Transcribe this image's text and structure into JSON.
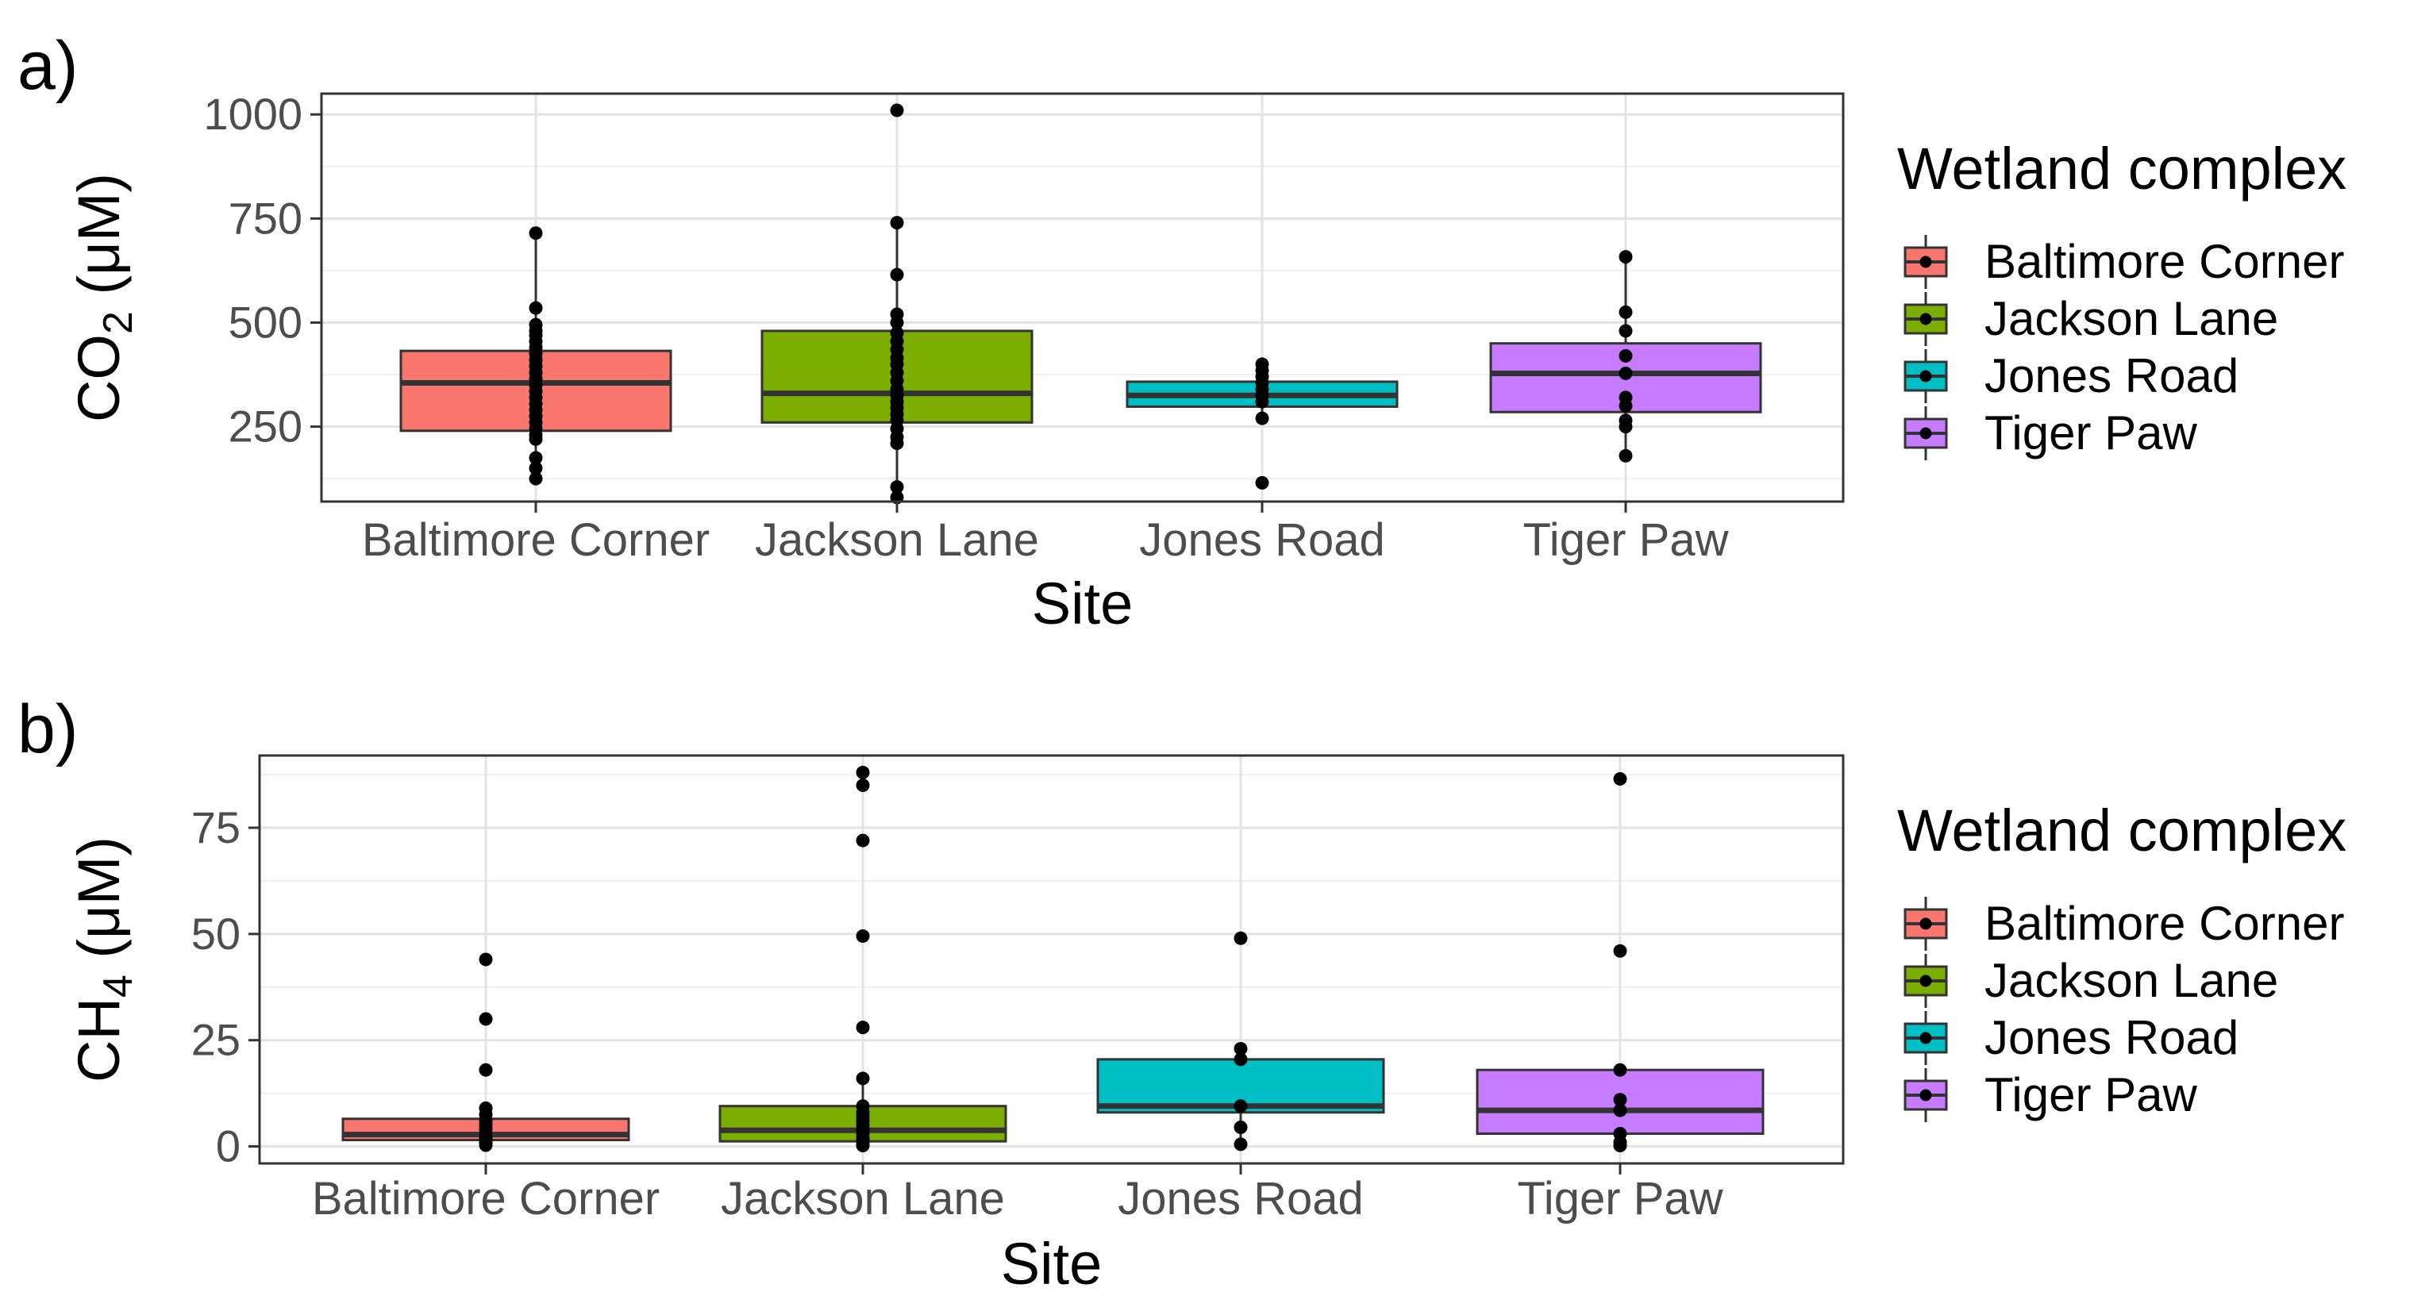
{
  "chart_data": [
    {
      "panel_label": "a)",
      "type": "box",
      "xlabel": "Site",
      "ylabel": {
        "main": "CO",
        "sub": "2",
        "unit": " (μM)"
      },
      "ylim": [
        70,
        1050
      ],
      "yticks": [
        250,
        500,
        750,
        1000
      ],
      "ytick_labels": [
        "250",
        "500",
        "750",
        "1000"
      ],
      "categories": [
        "Baltimore Corner",
        "Jackson Lane",
        "Jones Road",
        "Tiger Paw"
      ],
      "grid": true,
      "legend_position": "right",
      "boxes": [
        {
          "category": "Baltimore Corner",
          "q1": 240,
          "median": 355,
          "q3": 432,
          "whisker_low": 120,
          "whisker_high": 715,
          "points": [
            715,
            535,
            495,
            480,
            470,
            455,
            440,
            425,
            410,
            395,
            380,
            365,
            350,
            335,
            320,
            305,
            290,
            275,
            260,
            245,
            230,
            220,
            175,
            150,
            125
          ]
        },
        {
          "category": "Jackson Lane",
          "q1": 260,
          "median": 330,
          "q3": 480,
          "whisker_low": 80,
          "whisker_high": 740,
          "points": [
            1010,
            740,
            615,
            520,
            500,
            475,
            455,
            435,
            415,
            400,
            380,
            360,
            340,
            325,
            310,
            295,
            280,
            265,
            245,
            225,
            210,
            105,
            80
          ]
        },
        {
          "category": "Jones Road",
          "q1": 298,
          "median": 325,
          "q3": 358,
          "whisker_low": 270,
          "whisker_high": 400,
          "points": [
            400,
            385,
            370,
            355,
            340,
            325,
            310,
            270,
            115
          ]
        },
        {
          "category": "Tiger Paw",
          "q1": 285,
          "median": 378,
          "q3": 450,
          "whisker_low": 180,
          "whisker_high": 658,
          "points": [
            658,
            525,
            480,
            420,
            378,
            320,
            300,
            265,
            250,
            180
          ]
        }
      ]
    },
    {
      "panel_label": "b)",
      "type": "box",
      "xlabel": "Site",
      "ylabel": {
        "main": "CH",
        "sub": "4",
        "unit": " (μM)"
      },
      "ylim": [
        -4,
        92
      ],
      "yticks": [
        0,
        25,
        50,
        75
      ],
      "ytick_labels": [
        "0",
        "25",
        "50",
        "75"
      ],
      "categories": [
        "Baltimore Corner",
        "Jackson Lane",
        "Jones Road",
        "Tiger Paw"
      ],
      "grid": true,
      "legend_position": "right",
      "boxes": [
        {
          "category": "Baltimore Corner",
          "q1": 1.5,
          "median": 2.8,
          "q3": 6.5,
          "whisker_low": 0,
          "whisker_high": 9,
          "points": [
            44,
            30,
            18,
            9,
            7.5,
            6,
            5,
            4,
            3,
            2,
            1.5,
            0.8,
            0.3
          ]
        },
        {
          "category": "Jackson Lane",
          "q1": 1.2,
          "median": 3.8,
          "q3": 9.5,
          "whisker_low": 0,
          "whisker_high": 16,
          "points": [
            88,
            85,
            72,
            49.5,
            28,
            16,
            9.5,
            8,
            7,
            6,
            5,
            4,
            3,
            2,
            1.2,
            0.5,
            0.2
          ]
        },
        {
          "category": "Jones Road",
          "q1": 8,
          "median": 9.5,
          "q3": 20.5,
          "whisker_low": 0.5,
          "whisker_high": 23,
          "points": [
            49,
            23,
            20.5,
            9.5,
            4.5,
            0.5
          ]
        },
        {
          "category": "Tiger Paw",
          "q1": 3,
          "median": 8.5,
          "q3": 18,
          "whisker_low": 0.2,
          "whisker_high": 18,
          "points": [
            86.5,
            46,
            18,
            11,
            8.5,
            3,
            1,
            0.2
          ]
        }
      ]
    }
  ],
  "legend": {
    "title": "Wetland complex",
    "items": [
      {
        "label": "Baltimore Corner",
        "color": "#f8766d"
      },
      {
        "label": "Jackson Lane",
        "color": "#7cae00"
      },
      {
        "label": "Jones Road",
        "color": "#00bfc4"
      },
      {
        "label": "Tiger Paw",
        "color": "#c77cff"
      }
    ]
  }
}
